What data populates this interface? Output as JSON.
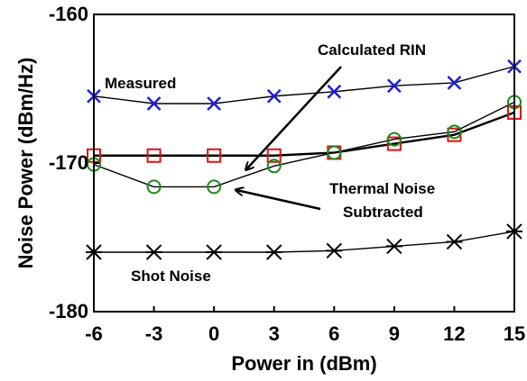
{
  "chart_data": {
    "type": "line",
    "xlabel": "Power in (dBm)",
    "ylabel": "Noise Power (dBm/Hz)",
    "xlim": [
      -6,
      15
    ],
    "ylim": [
      -180,
      -160
    ],
    "x_ticks": [
      "-6",
      "-3",
      "0",
      "3",
      "6",
      "9",
      "12",
      "15"
    ],
    "y_ticks": [
      "-160",
      "-170",
      "-180"
    ],
    "grid": false,
    "x": [
      -6,
      -3,
      0,
      3,
      6,
      9,
      12,
      15
    ],
    "series": [
      {
        "name": "Measured",
        "marker": "x",
        "color": "#1f1fd6",
        "values": [
          -165.5,
          -166.0,
          -166.0,
          -165.5,
          -165.2,
          -164.8,
          -164.6,
          -163.5
        ]
      },
      {
        "name": "Calculated RIN",
        "marker": "square",
        "color": "#e01010",
        "values": [
          -169.5,
          -169.5,
          -169.5,
          -169.5,
          -169.3,
          -168.7,
          -168.1,
          -166.6
        ]
      },
      {
        "name": "Thermal Noise Subtracted",
        "marker": "circle",
        "color": "#1a8a1a",
        "values": [
          -170.1,
          -171.6,
          -171.6,
          -170.2,
          -169.3,
          -168.4,
          -167.9,
          -165.9
        ]
      },
      {
        "name": "Shot Noise",
        "marker": "asterisk",
        "color": "#000000",
        "values": [
          -176.0,
          -176.0,
          -176.0,
          -176.0,
          -175.9,
          -175.6,
          -175.3,
          -174.6
        ]
      }
    ],
    "annotations": {
      "measured": "Measured",
      "calculated_rin": "Calculated RIN",
      "thermal_line1": "Thermal Noise",
      "thermal_line2": "Subtracted",
      "shot_noise": "Shot Noise"
    }
  }
}
